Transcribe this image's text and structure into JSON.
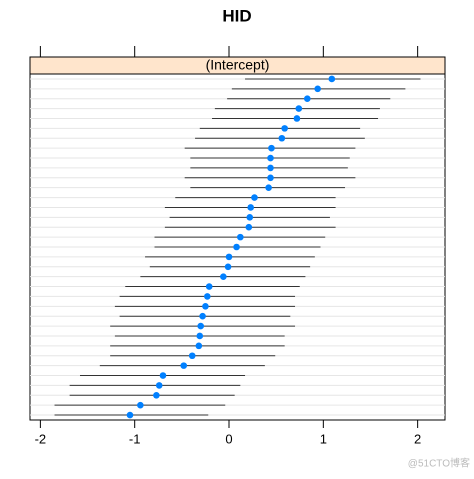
{
  "chart_data": {
    "type": "dotplot",
    "title": "HID",
    "strip": "(Intercept)",
    "values": [
      1.09,
      0.94,
      0.83,
      0.74,
      0.72,
      0.59,
      0.56,
      0.45,
      0.44,
      0.44,
      0.44,
      0.42,
      0.27,
      0.23,
      0.22,
      0.21,
      0.12,
      0.08,
      0.0,
      -0.01,
      -0.06,
      -0.21,
      -0.23,
      -0.25,
      -0.28,
      -0.3,
      -0.31,
      -0.32,
      -0.39,
      -0.48,
      -0.7,
      -0.74,
      -0.77,
      -0.94,
      -1.05
    ],
    "lower": [
      0.17,
      0.03,
      -0.02,
      -0.15,
      -0.18,
      -0.31,
      -0.36,
      -0.47,
      -0.41,
      -0.41,
      -0.47,
      -0.41,
      -0.57,
      -0.68,
      -0.63,
      -0.68,
      -0.79,
      -0.79,
      -0.89,
      -0.84,
      -0.94,
      -1.1,
      -1.16,
      -1.21,
      -1.16,
      -1.26,
      -1.21,
      -1.26,
      -1.26,
      -1.37,
      -1.58,
      -1.69,
      -1.69,
      -1.85,
      -1.85
    ],
    "upper": [
      2.03,
      1.87,
      1.71,
      1.6,
      1.58,
      1.39,
      1.44,
      1.34,
      1.28,
      1.26,
      1.34,
      1.23,
      1.13,
      1.13,
      1.07,
      1.13,
      1.02,
      0.97,
      0.91,
      0.86,
      0.81,
      0.75,
      0.7,
      0.7,
      0.65,
      0.7,
      0.59,
      0.59,
      0.49,
      0.38,
      0.17,
      0.12,
      0.06,
      -0.04,
      -0.22
    ],
    "color": "#0080ff",
    "interval_color": "#333333",
    "strip_color": "#ffe5cc",
    "xlim": [
      -2.11,
      2.29
    ],
    "xticks": [
      -2,
      -1,
      0,
      1,
      2
    ],
    "watermark": "@51CTO博客"
  }
}
